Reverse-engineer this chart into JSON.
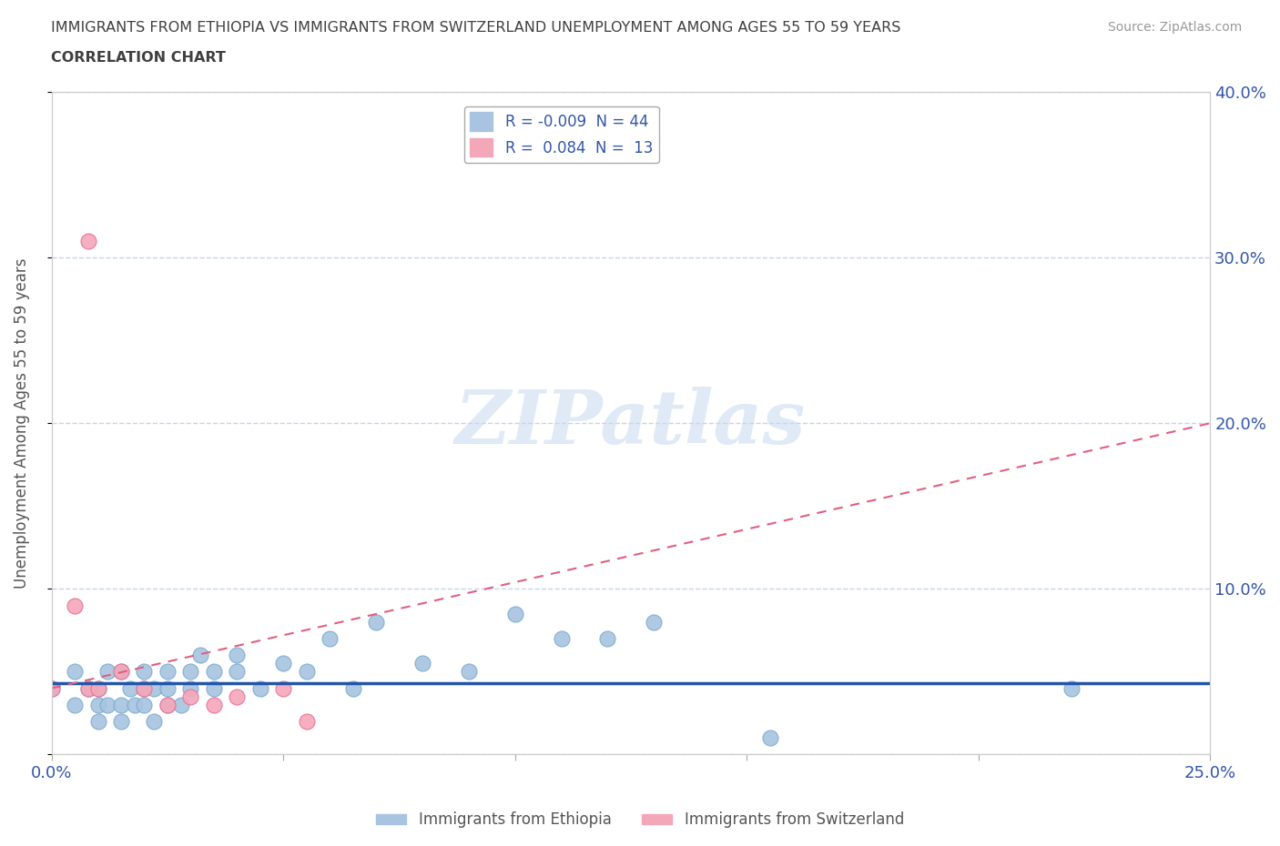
{
  "title_line1": "IMMIGRANTS FROM ETHIOPIA VS IMMIGRANTS FROM SWITZERLAND UNEMPLOYMENT AMONG AGES 55 TO 59 YEARS",
  "title_line2": "CORRELATION CHART",
  "source": "Source: ZipAtlas.com",
  "ylabel": "Unemployment Among Ages 55 to 59 years",
  "xlim": [
    0.0,
    0.25
  ],
  "ylim": [
    0.0,
    0.4
  ],
  "ethiopia_color": "#a8c4e0",
  "switzerland_color": "#f4a7b9",
  "ethiopia_edge_color": "#7aaad0",
  "switzerland_edge_color": "#e87090",
  "ethiopia_R": -0.009,
  "ethiopia_N": 44,
  "switzerland_R": 0.084,
  "switzerland_N": 13,
  "legend_label_ethiopia": "Immigrants from Ethiopia",
  "legend_label_switzerland": "Immigrants from Switzerland",
  "watermark": "ZIPatlas",
  "ethiopia_x": [
    0.0,
    0.005,
    0.005,
    0.008,
    0.01,
    0.01,
    0.01,
    0.012,
    0.012,
    0.015,
    0.015,
    0.015,
    0.017,
    0.018,
    0.02,
    0.02,
    0.02,
    0.022,
    0.022,
    0.025,
    0.025,
    0.025,
    0.028,
    0.03,
    0.03,
    0.032,
    0.035,
    0.035,
    0.04,
    0.04,
    0.045,
    0.05,
    0.055,
    0.06,
    0.065,
    0.07,
    0.08,
    0.09,
    0.1,
    0.11,
    0.12,
    0.13,
    0.155,
    0.22
  ],
  "ethiopia_y": [
    0.04,
    0.03,
    0.05,
    0.04,
    0.02,
    0.03,
    0.04,
    0.03,
    0.05,
    0.02,
    0.03,
    0.05,
    0.04,
    0.03,
    0.03,
    0.04,
    0.05,
    0.02,
    0.04,
    0.03,
    0.04,
    0.05,
    0.03,
    0.04,
    0.05,
    0.06,
    0.04,
    0.05,
    0.05,
    0.06,
    0.04,
    0.055,
    0.05,
    0.07,
    0.04,
    0.08,
    0.055,
    0.05,
    0.085,
    0.07,
    0.07,
    0.08,
    0.01,
    0.04
  ],
  "switzerland_x": [
    0.0,
    0.005,
    0.008,
    0.008,
    0.01,
    0.015,
    0.02,
    0.025,
    0.03,
    0.035,
    0.04,
    0.05,
    0.055
  ],
  "switzerland_y": [
    0.04,
    0.09,
    0.04,
    0.31,
    0.04,
    0.05,
    0.04,
    0.03,
    0.035,
    0.03,
    0.035,
    0.04,
    0.02
  ],
  "grid_color": "#c8d4e8",
  "trend_blue_color": "#2255aa",
  "trend_pink_color": "#e06080",
  "background_color": "#ffffff",
  "title_color": "#404040",
  "axis_label_color": "#3355aa",
  "ylabel_color": "#555555"
}
